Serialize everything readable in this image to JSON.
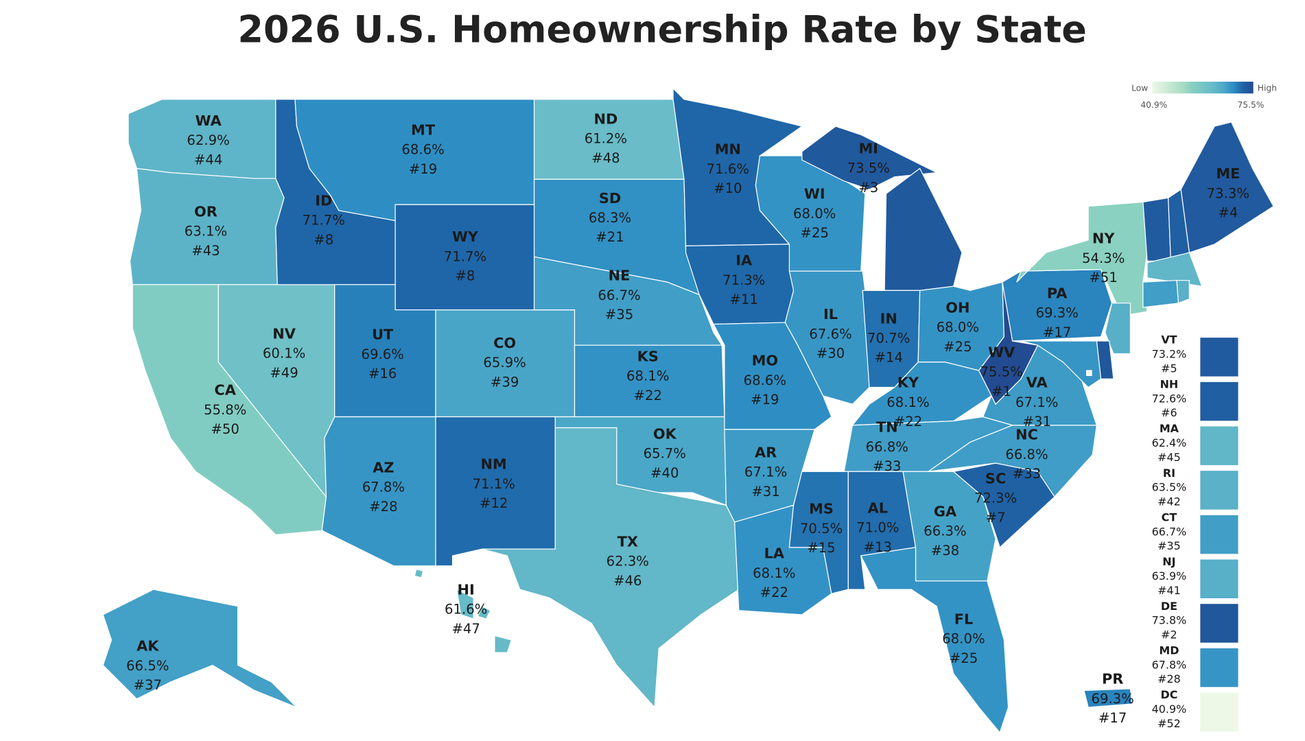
{
  "title": "2026 U.S. Homeownership Rate by State",
  "legend": {
    "low_text": "Low",
    "high_text": "High",
    "min": 40.9,
    "min_label": "40.9%",
    "max": 75.5,
    "max_label": "75.5%"
  },
  "states": [
    {
      "abbr": "WA",
      "value": 62.9,
      "value_label": "62.9%",
      "rank": "#44"
    },
    {
      "abbr": "OR",
      "value": 63.1,
      "value_label": "63.1%",
      "rank": "#43"
    },
    {
      "abbr": "CA",
      "value": 55.8,
      "value_label": "55.8%",
      "rank": "#50"
    },
    {
      "abbr": "NV",
      "value": 60.1,
      "value_label": "60.1%",
      "rank": "#49"
    },
    {
      "abbr": "ID",
      "value": 71.7,
      "value_label": "71.7%",
      "rank": "#8"
    },
    {
      "abbr": "MT",
      "value": 68.6,
      "value_label": "68.6%",
      "rank": "#19"
    },
    {
      "abbr": "WY",
      "value": 71.7,
      "value_label": "71.7%",
      "rank": "#8"
    },
    {
      "abbr": "UT",
      "value": 69.6,
      "value_label": "69.6%",
      "rank": "#16"
    },
    {
      "abbr": "CO",
      "value": 65.9,
      "value_label": "65.9%",
      "rank": "#39"
    },
    {
      "abbr": "AZ",
      "value": 67.8,
      "value_label": "67.8%",
      "rank": "#28"
    },
    {
      "abbr": "NM",
      "value": 71.1,
      "value_label": "71.1%",
      "rank": "#12"
    },
    {
      "abbr": "ND",
      "value": 61.2,
      "value_label": "61.2%",
      "rank": "#48"
    },
    {
      "abbr": "SD",
      "value": 68.3,
      "value_label": "68.3%",
      "rank": "#21"
    },
    {
      "abbr": "NE",
      "value": 66.7,
      "value_label": "66.7%",
      "rank": "#35"
    },
    {
      "abbr": "KS",
      "value": 68.1,
      "value_label": "68.1%",
      "rank": "#22"
    },
    {
      "abbr": "OK",
      "value": 65.7,
      "value_label": "65.7%",
      "rank": "#40"
    },
    {
      "abbr": "TX",
      "value": 62.3,
      "value_label": "62.3%",
      "rank": "#46"
    },
    {
      "abbr": "MN",
      "value": 71.6,
      "value_label": "71.6%",
      "rank": "#10"
    },
    {
      "abbr": "IA",
      "value": 71.3,
      "value_label": "71.3%",
      "rank": "#11"
    },
    {
      "abbr": "MO",
      "value": 68.6,
      "value_label": "68.6%",
      "rank": "#19"
    },
    {
      "abbr": "AR",
      "value": 67.1,
      "value_label": "67.1%",
      "rank": "#31"
    },
    {
      "abbr": "LA",
      "value": 68.1,
      "value_label": "68.1%",
      "rank": "#22"
    },
    {
      "abbr": "WI",
      "value": 68.0,
      "value_label": "68.0%",
      "rank": "#25"
    },
    {
      "abbr": "IL",
      "value": 67.6,
      "value_label": "67.6%",
      "rank": "#30"
    },
    {
      "abbr": "MI",
      "value": 73.5,
      "value_label": "73.5%",
      "rank": "#3"
    },
    {
      "abbr": "IN",
      "value": 70.7,
      "value_label": "70.7%",
      "rank": "#14"
    },
    {
      "abbr": "OH",
      "value": 68.0,
      "value_label": "68.0%",
      "rank": "#25"
    },
    {
      "abbr": "KY",
      "value": 68.1,
      "value_label": "68.1%",
      "rank": "#22"
    },
    {
      "abbr": "TN",
      "value": 66.8,
      "value_label": "66.8%",
      "rank": "#33"
    },
    {
      "abbr": "MS",
      "value": 70.5,
      "value_label": "70.5%",
      "rank": "#15"
    },
    {
      "abbr": "AL",
      "value": 71.0,
      "value_label": "71.0%",
      "rank": "#13"
    },
    {
      "abbr": "GA",
      "value": 66.3,
      "value_label": "66.3%",
      "rank": "#38"
    },
    {
      "abbr": "FL",
      "value": 68.0,
      "value_label": "68.0%",
      "rank": "#25"
    },
    {
      "abbr": "SC",
      "value": 72.3,
      "value_label": "72.3%",
      "rank": "#7"
    },
    {
      "abbr": "NC",
      "value": 66.8,
      "value_label": "66.8%",
      "rank": "#33"
    },
    {
      "abbr": "VA",
      "value": 67.1,
      "value_label": "67.1%",
      "rank": "#31"
    },
    {
      "abbr": "WV",
      "value": 75.5,
      "value_label": "75.5%",
      "rank": "#1"
    },
    {
      "abbr": "PA",
      "value": 69.3,
      "value_label": "69.3%",
      "rank": "#17"
    },
    {
      "abbr": "NY",
      "value": 54.3,
      "value_label": "54.3%",
      "rank": "#51"
    },
    {
      "abbr": "ME",
      "value": 73.3,
      "value_label": "73.3%",
      "rank": "#4"
    },
    {
      "abbr": "AK",
      "value": 66.5,
      "value_label": "66.5%",
      "rank": "#37"
    },
    {
      "abbr": "HI",
      "value": 61.6,
      "value_label": "61.6%",
      "rank": "#47"
    },
    {
      "abbr": "PR",
      "value": 69.3,
      "value_label": "69.3%",
      "rank": "#17"
    }
  ],
  "small_states": [
    {
      "abbr": "VT",
      "value": 73.2,
      "value_label": "73.2%",
      "rank": "#5"
    },
    {
      "abbr": "NH",
      "value": 72.6,
      "value_label": "72.6%",
      "rank": "#6"
    },
    {
      "abbr": "MA",
      "value": 62.4,
      "value_label": "62.4%",
      "rank": "#45"
    },
    {
      "abbr": "RI",
      "value": 63.5,
      "value_label": "63.5%",
      "rank": "#42"
    },
    {
      "abbr": "CT",
      "value": 66.7,
      "value_label": "66.7%",
      "rank": "#35"
    },
    {
      "abbr": "NJ",
      "value": 63.9,
      "value_label": "63.9%",
      "rank": "#41"
    },
    {
      "abbr": "DE",
      "value": 73.8,
      "value_label": "73.8%",
      "rank": "#2"
    },
    {
      "abbr": "MD",
      "value": 67.8,
      "value_label": "67.8%",
      "rank": "#28"
    },
    {
      "abbr": "DC",
      "value": 40.9,
      "value_label": "40.9%",
      "rank": "#52"
    }
  ]
}
